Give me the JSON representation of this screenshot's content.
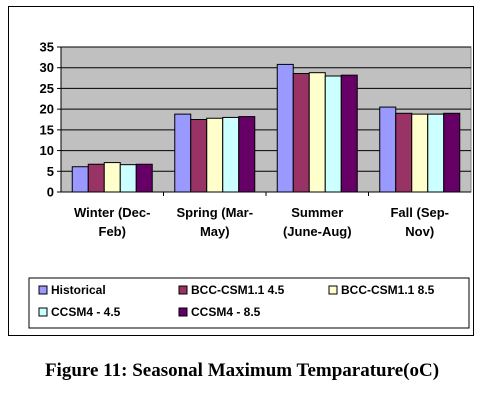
{
  "caption": "Figure 11: Seasonal Maximum Temparature(oC)",
  "chart_data": {
    "type": "bar",
    "categories": [
      "Winter (Dec-Feb)",
      "Spring (Mar-May)",
      "Summer (June-Aug)",
      "Fall (Sep-Nov)"
    ],
    "category_lines": [
      [
        "Winter (Dec-",
        "Feb)"
      ],
      [
        "Spring (Mar-",
        "May)"
      ],
      [
        "Summer",
        "(June-Aug)"
      ],
      [
        "Fall (Sep-",
        "Nov)"
      ]
    ],
    "series": [
      {
        "name": "Historical",
        "color": "#9999ff",
        "values": [
          6.1,
          18.8,
          30.8,
          20.5
        ]
      },
      {
        "name": "BCC-CSM1.1 4.5",
        "color": "#993366",
        "values": [
          6.7,
          17.5,
          28.6,
          19.0
        ]
      },
      {
        "name": "BCC-CSM1.1 8.5",
        "color": "#ffffcc",
        "values": [
          7.1,
          17.8,
          28.8,
          18.8
        ]
      },
      {
        "name": "CCSM4 - 4.5",
        "color": "#ccffff",
        "values": [
          6.6,
          18.0,
          28.0,
          18.8
        ]
      },
      {
        "name": "CCSM4 - 8.5",
        "color": "#660066",
        "values": [
          6.7,
          18.2,
          28.2,
          19.0
        ]
      }
    ],
    "ylim": [
      0,
      35
    ],
    "yticks": [
      0,
      5,
      10,
      15,
      20,
      25,
      30,
      35
    ],
    "grid": true,
    "plot_background": "#c0c0c0",
    "legend_position": "bottom"
  }
}
